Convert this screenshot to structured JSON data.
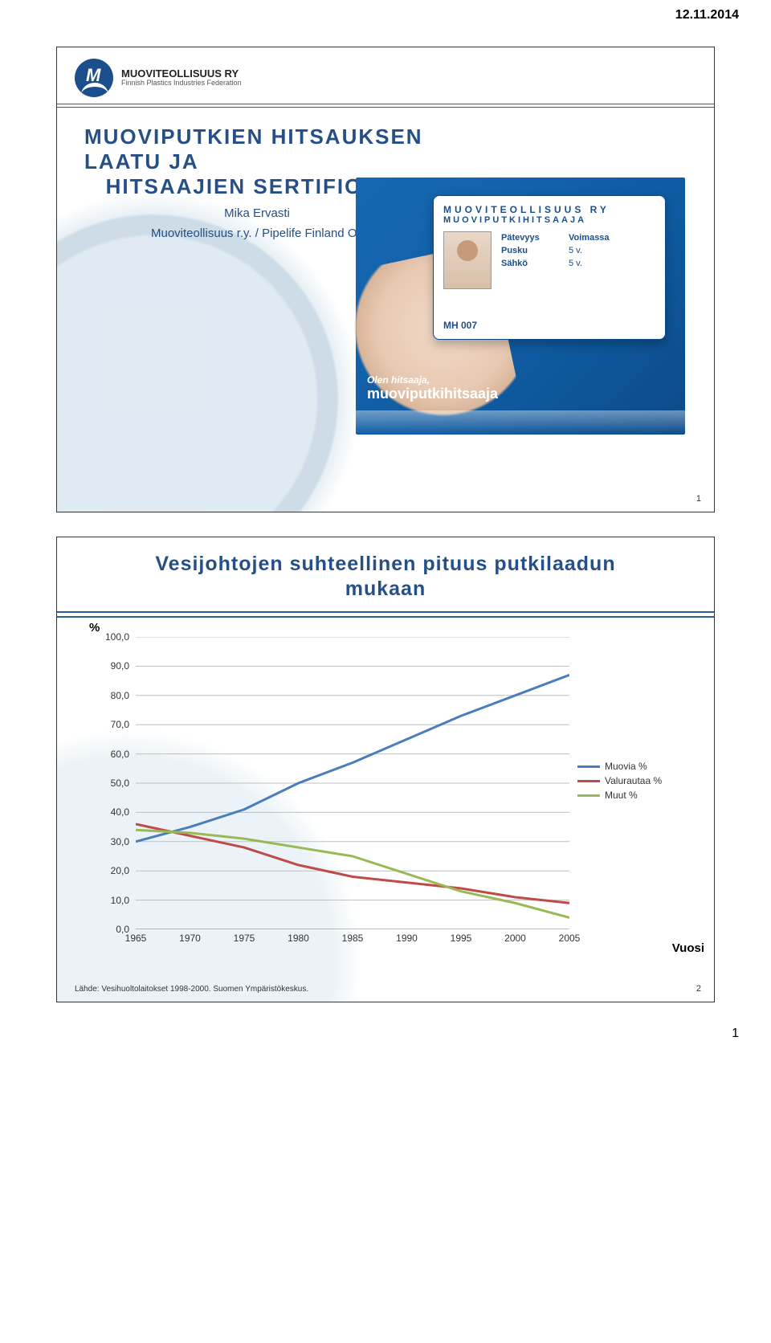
{
  "page": {
    "date": "12.11.2014",
    "pageNumber": "1"
  },
  "logo": {
    "line1": "MUOVITEOLLISUUS RY",
    "line2": "Finnish Plastics Industries Federation"
  },
  "slide1": {
    "title_line1": "MUOVIPUTKIEN HITSAUKSEN LAATU JA",
    "title_line2": "HITSAAJIEN SERTIFIOINTI",
    "author": "Mika Ervasti",
    "org": "Muoviteollisuus r.y. / Pipelife Finland Oy",
    "card": {
      "org1": "MUOVITEOLLISUUS RY",
      "org2": "MUOVIPUTKIHITSAAJA",
      "col_validity": "Pätevyys",
      "col_valid": "Voimassa",
      "row1_label": "Pusku",
      "row1_value": "5 v.",
      "row2_label": "Sähkö",
      "row2_value": "5 v.",
      "id": "MH 007"
    },
    "banner_line1": "Olen hitsaaja,",
    "banner_line2": "muoviputkihitsaaja",
    "slideNum": "1"
  },
  "slide2": {
    "title_line1": "Vesijohtojen suhteellinen pituus putkilaadun",
    "title_line2": "mukaan",
    "y_axis_label": "%",
    "x_axis_label": "Vuosi",
    "chart": {
      "type": "line",
      "x_categories": [
        "1965",
        "1970",
        "1975",
        "1980",
        "1985",
        "1990",
        "1995",
        "2000",
        "2005"
      ],
      "y_ticks": [
        "0,0",
        "10,0",
        "20,0",
        "30,0",
        "40,0",
        "50,0",
        "60,0",
        "70,0",
        "80,0",
        "90,0",
        "100,0"
      ],
      "ylim": [
        0,
        100
      ],
      "ytick_step": 10,
      "background_color": "#ffffff",
      "grid_color": "#bfbfbf",
      "axis_color": "#808080",
      "line_width": 3,
      "label_fontsize": 12,
      "series": [
        {
          "name": "Muovia %",
          "color": "#4a7ebb",
          "values": [
            30,
            35,
            41,
            50,
            57,
            65,
            73,
            80,
            87
          ]
        },
        {
          "name": "Valurautaa %",
          "color": "#be4b48",
          "values": [
            36,
            32,
            28,
            22,
            18,
            16,
            14,
            11,
            9
          ]
        },
        {
          "name": "Muut %",
          "color": "#98b954",
          "values": [
            34,
            33,
            31,
            28,
            25,
            19,
            13,
            9,
            4
          ]
        }
      ]
    },
    "source": "Lähde: Vesihuoltolaitokset 1998-2000. Suomen Ympäristökeskus.",
    "slideNum": "2"
  }
}
